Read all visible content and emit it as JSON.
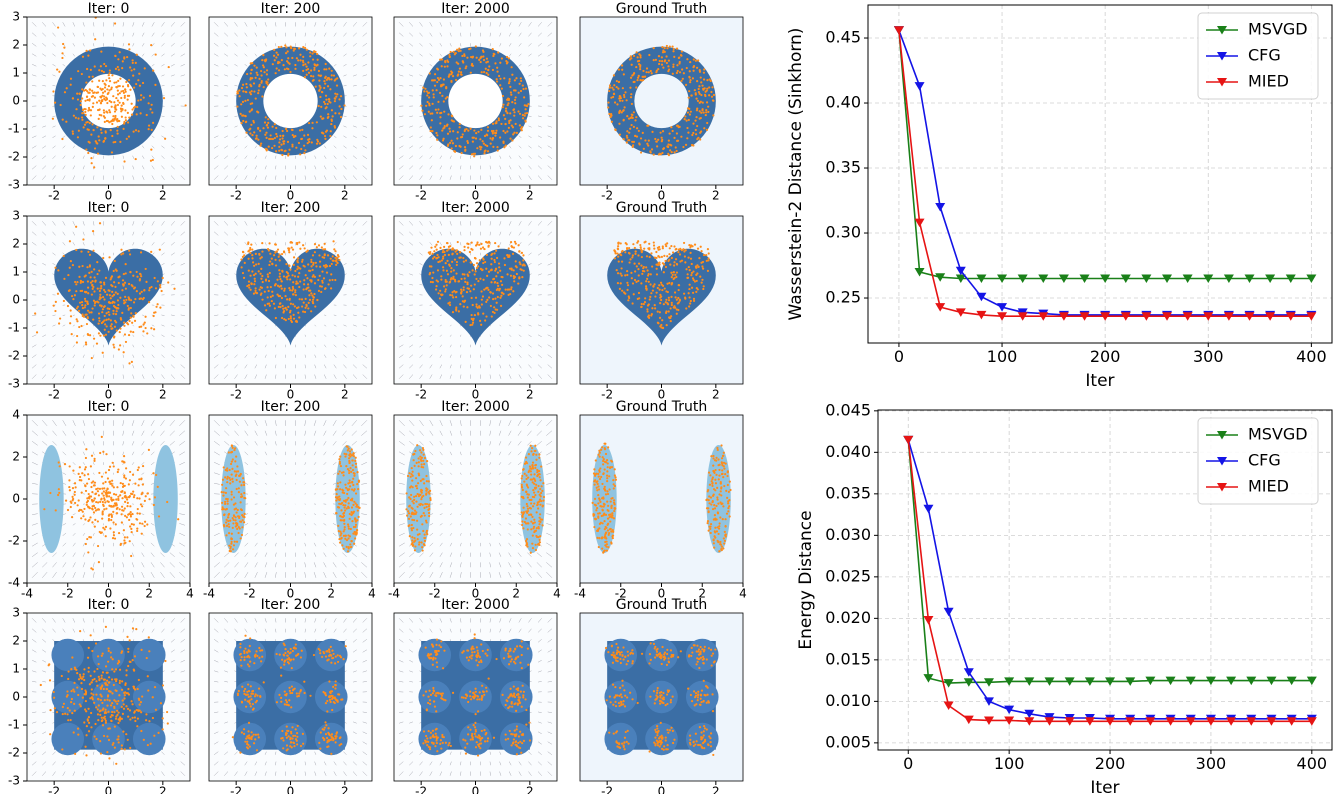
{
  "chart_data": [
    {
      "type": "density",
      "title": "Iter: 0",
      "xlim": [
        -3,
        3
      ],
      "ylim": [
        -3,
        3
      ],
      "xticks": [
        -2,
        0,
        2
      ],
      "yticks": [
        -3,
        -2,
        -1,
        0,
        1,
        2,
        3
      ]
    },
    {
      "type": "density",
      "title": "Iter: 200",
      "xlim": [
        -3,
        3
      ],
      "ylim": [
        -3,
        3
      ],
      "xticks": [
        -2,
        0,
        2
      ]
    },
    {
      "type": "density",
      "title": "Iter: 2000",
      "xlim": [
        -3,
        3
      ],
      "ylim": [
        -3,
        3
      ],
      "xticks": [
        -2,
        0,
        2
      ]
    },
    {
      "type": "density",
      "title": "Ground Truth",
      "xlim": [
        -3,
        3
      ],
      "ylim": [
        -3,
        3
      ],
      "xticks": [
        -2,
        0,
        2
      ]
    },
    {
      "type": "density",
      "title": "Iter: 0",
      "xlim": [
        -3,
        3
      ],
      "ylim": [
        -3,
        3
      ],
      "xticks": [
        -2,
        0,
        2
      ],
      "yticks": [
        -3,
        -2,
        -1,
        0,
        1,
        2,
        3
      ]
    },
    {
      "type": "density",
      "title": "Iter: 200",
      "xlim": [
        -3,
        3
      ],
      "ylim": [
        -3,
        3
      ],
      "xticks": [
        -2,
        0,
        2
      ]
    },
    {
      "type": "density",
      "title": "Iter: 2000",
      "xlim": [
        -3,
        3
      ],
      "ylim": [
        -3,
        3
      ],
      "xticks": [
        -2,
        0,
        2
      ]
    },
    {
      "type": "density",
      "title": "Ground Truth",
      "xlim": [
        -3,
        3
      ],
      "ylim": [
        -3,
        3
      ],
      "xticks": [
        -2,
        0,
        2
      ]
    },
    {
      "type": "density",
      "title": "Iter: 0",
      "xlim": [
        -4,
        4
      ],
      "ylim": [
        -4,
        4
      ],
      "xticks": [
        -4,
        -2,
        0,
        2,
        4
      ],
      "yticks": [
        -4,
        -2,
        0,
        2,
        4
      ]
    },
    {
      "type": "density",
      "title": "Iter: 200",
      "xlim": [
        -4,
        4
      ],
      "ylim": [
        -4,
        4
      ],
      "xticks": [
        -4,
        -2,
        0,
        2,
        4
      ]
    },
    {
      "type": "density",
      "title": "Iter: 2000",
      "xlim": [
        -4,
        4
      ],
      "ylim": [
        -4,
        4
      ],
      "xticks": [
        -4,
        -2,
        0,
        2,
        4
      ]
    },
    {
      "type": "density",
      "title": "Ground Truth",
      "xlim": [
        -4,
        4
      ],
      "ylim": [
        -4,
        4
      ],
      "xticks": [
        -4,
        -2,
        0,
        2,
        4
      ]
    },
    {
      "type": "density",
      "title": "Iter: 0",
      "xlim": [
        -3,
        3
      ],
      "ylim": [
        -3,
        3
      ],
      "xticks": [
        -2,
        0,
        2
      ],
      "yticks": [
        -3,
        -2,
        -1,
        0,
        1,
        2,
        3
      ]
    },
    {
      "type": "density",
      "title": "Iter: 200",
      "xlim": [
        -3,
        3
      ],
      "ylim": [
        -3,
        3
      ],
      "xticks": [
        -2,
        0,
        2
      ]
    },
    {
      "type": "density",
      "title": "Iter: 2000",
      "xlim": [
        -3,
        3
      ],
      "ylim": [
        -3,
        3
      ],
      "xticks": [
        -2,
        0,
        2
      ]
    },
    {
      "type": "density",
      "title": "Ground Truth",
      "xlim": [
        -3,
        3
      ],
      "ylim": [
        -3,
        3
      ],
      "xticks": [
        -2,
        0,
        2
      ]
    },
    {
      "type": "line",
      "x_label": "Iter",
      "y_label": "Wasserstein-2 Distance (Sinkhorn)",
      "x": [
        0,
        20,
        40,
        60,
        80,
        100,
        120,
        140,
        160,
        180,
        200,
        220,
        240,
        260,
        280,
        300,
        320,
        340,
        360,
        380,
        400
      ],
      "xlim": [
        -30,
        420
      ],
      "ylim": [
        0.2154,
        0.4754
      ],
      "xticks": [
        0,
        100,
        200,
        300,
        400
      ],
      "yticks": [
        0.25,
        {
          "value": 0.3,
          "label": "0.30"
        },
        0.35,
        {
          "value": 0.4,
          "label": "0.40"
        },
        0.45
      ],
      "grid": true,
      "legend": "upper right",
      "series": [
        {
          "name": "MSVGD",
          "color": "#1a8019",
          "values": [
            0.456,
            0.27,
            0.266,
            0.265,
            0.265,
            0.265,
            0.265,
            0.265,
            0.265,
            0.265,
            0.265,
            0.265,
            0.265,
            0.265,
            0.265,
            0.265,
            0.265,
            0.265,
            0.265,
            0.265,
            0.265
          ]
        },
        {
          "name": "CFG",
          "color": "#1414e6",
          "values": [
            0.456,
            0.413,
            0.32,
            0.271,
            0.251,
            0.243,
            0.239,
            0.238,
            0.237,
            0.237,
            0.237,
            0.237,
            0.237,
            0.237,
            0.237,
            0.237,
            0.237,
            0.237,
            0.237,
            0.237,
            0.237
          ]
        },
        {
          "name": "MIED",
          "color": "#e61414",
          "values": [
            0.456,
            0.308,
            0.243,
            0.239,
            0.237,
            0.236,
            0.236,
            0.236,
            0.236,
            0.236,
            0.236,
            0.236,
            0.236,
            0.236,
            0.236,
            0.236,
            0.236,
            0.236,
            0.236,
            0.236,
            0.236
          ]
        }
      ]
    },
    {
      "type": "line",
      "x_label": "Iter",
      "y_label": "Energy Distance",
      "x": [
        0,
        20,
        40,
        60,
        80,
        100,
        120,
        140,
        160,
        180,
        200,
        220,
        240,
        260,
        280,
        300,
        320,
        340,
        360,
        380,
        400
      ],
      "xlim": [
        -30,
        420
      ],
      "ylim": [
        0.00414,
        0.0451
      ],
      "xticks": [
        0,
        100,
        200,
        300,
        400
      ],
      "yticks": [
        0.005,
        {
          "value": 0.01,
          "label": "0.010"
        },
        0.015,
        {
          "value": 0.02,
          "label": "0.020"
        },
        0.025,
        {
          "value": 0.03,
          "label": "0.030"
        },
        0.035,
        {
          "value": 0.04,
          "label": "0.040"
        },
        0.045
      ],
      "grid": true,
      "legend": "upper right",
      "series": [
        {
          "name": "MSVGD",
          "color": "#1a8019",
          "values": [
            0.0415,
            0.0128,
            0.0122,
            0.0123,
            0.0123,
            0.0124,
            0.0124,
            0.0124,
            0.0124,
            0.0124,
            0.0124,
            0.0124,
            0.0125,
            0.0125,
            0.0125,
            0.0125,
            0.0125,
            0.0125,
            0.0125,
            0.0125,
            0.0125
          ]
        },
        {
          "name": "CFG",
          "color": "#1414e6",
          "values": [
            0.0415,
            0.0332,
            0.0208,
            0.0135,
            0.01,
            0.009,
            0.0085,
            0.0081,
            0.008,
            0.008,
            0.0079,
            0.0079,
            0.0079,
            0.0079,
            0.0079,
            0.0079,
            0.0079,
            0.0079,
            0.0079,
            0.0079,
            0.0079
          ]
        },
        {
          "name": "MIED",
          "color": "#e61414",
          "values": [
            0.0415,
            0.0198,
            0.0095,
            0.0078,
            0.0077,
            0.0077,
            0.0076,
            0.0076,
            0.0076,
            0.0076,
            0.0076,
            0.0076,
            0.0076,
            0.0076,
            0.0076,
            0.0076,
            0.0076,
            0.0076,
            0.0076,
            0.0076,
            0.0076
          ]
        }
      ]
    }
  ]
}
